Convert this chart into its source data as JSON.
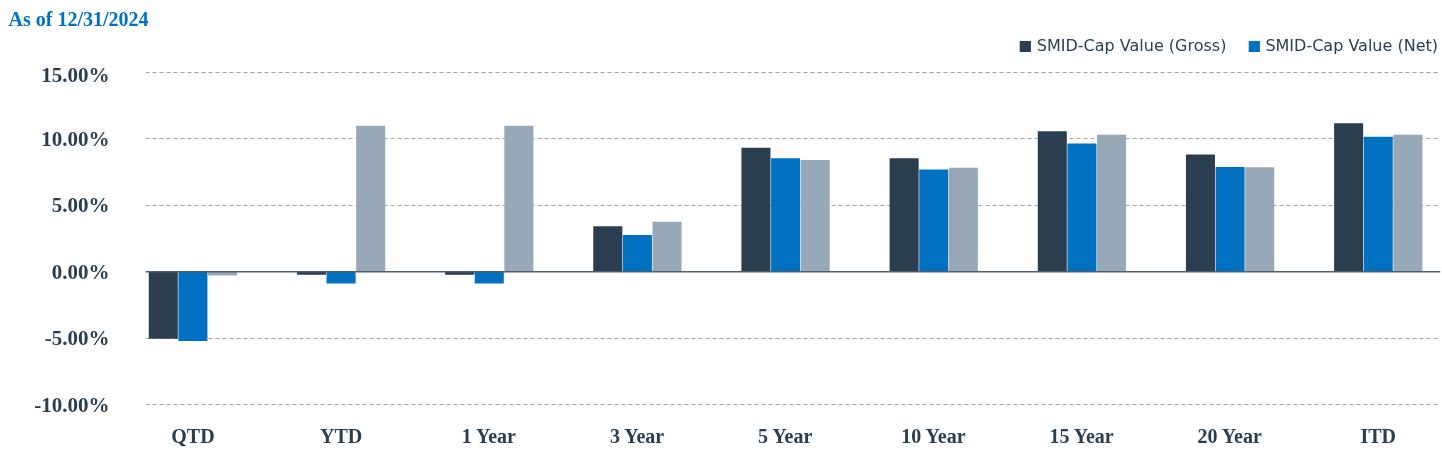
{
  "chart_data": {
    "type": "bar",
    "title": "As of 12/31/2024",
    "categories": [
      "QTD",
      "YTD",
      "1 Year",
      "3 Year",
      "5 Year",
      "10 Year",
      "15 Year",
      "20 Year",
      "ITD"
    ],
    "series": [
      {
        "name": "SMID-Cap Value (Gross)",
        "color": "#2b3e50",
        "values": [
          -5.05,
          -0.22,
          -0.22,
          3.43,
          9.34,
          8.55,
          10.58,
          8.83,
          11.17
        ]
      },
      {
        "name": "SMID-Cap Value (Net)",
        "color": "#0070c0",
        "values": [
          -5.22,
          -0.89,
          -0.89,
          2.77,
          8.55,
          7.69,
          9.66,
          7.89,
          10.17
        ]
      },
      {
        "color": "#97a9b8",
        "values": [
          -0.28,
          10.98,
          10.98,
          3.76,
          8.41,
          7.83,
          10.31,
          7.87,
          10.31
        ]
      }
    ],
    "ylim": [
      -10,
      15
    ],
    "yticks": [
      {
        "value": -10,
        "label": "-10.00%"
      },
      {
        "value": -5,
        "label": "-5.00%"
      },
      {
        "value": 0,
        "label": "0.00%"
      },
      {
        "value": 5,
        "label": "5.00%"
      },
      {
        "value": 10,
        "label": "10.00%"
      },
      {
        "value": 15,
        "label": "15.00%"
      }
    ],
    "grid": "y",
    "legend": "top right"
  }
}
